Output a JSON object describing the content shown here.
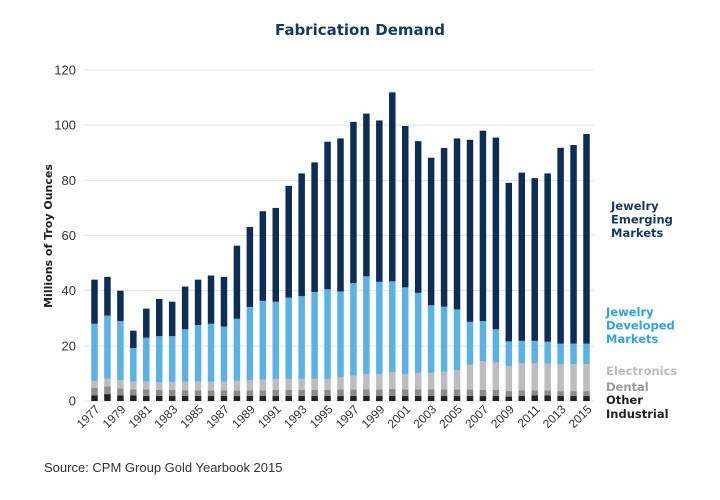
{
  "chart_data": {
    "type": "bar",
    "stacked": true,
    "title": "Fabrication Demand",
    "xlabel": "",
    "ylabel": "Millions of Troy Ounces",
    "ylim": [
      0,
      120
    ],
    "yticks": [
      0,
      20,
      40,
      60,
      80,
      100,
      120
    ],
    "grid": true,
    "legend_position": "right",
    "categories": [
      "1977",
      "1978",
      "1979",
      "1980",
      "1981",
      "1982",
      "1983",
      "1984",
      "1985",
      "1986",
      "1987",
      "1988",
      "1989",
      "1990",
      "1991",
      "1992",
      "1993",
      "1994",
      "1995",
      "1996",
      "1997",
      "1998",
      "1999",
      "2000",
      "2001",
      "2002",
      "2003",
      "2004",
      "2005",
      "2006",
      "2007",
      "2008",
      "2009",
      "2010",
      "2011",
      "2012",
      "2013",
      "2014",
      "2015"
    ],
    "xtick_labels": [
      "1977",
      "1979",
      "1981",
      "1983",
      "1985",
      "1987",
      "1989",
      "1991",
      "1993",
      "1995",
      "1997",
      "1999",
      "2001",
      "2003",
      "2005",
      "2007",
      "2009",
      "2011",
      "2013",
      "2015"
    ],
    "series": [
      {
        "name": "Other Industrial",
        "color": "#222222",
        "values": [
          2.0,
          2.5,
          2.0,
          2.0,
          1.8,
          1.8,
          1.8,
          1.8,
          1.8,
          1.8,
          1.8,
          1.8,
          1.8,
          1.8,
          1.8,
          1.8,
          1.8,
          1.8,
          1.8,
          1.8,
          1.8,
          1.8,
          1.8,
          1.8,
          1.8,
          1.8,
          1.8,
          1.8,
          1.8,
          1.8,
          1.8,
          1.8,
          1.6,
          1.8,
          2.0,
          2.0,
          1.8,
          1.8,
          1.8
        ]
      },
      {
        "name": "Dental",
        "color": "#8c8c8c",
        "values": [
          2.8,
          2.8,
          2.6,
          2.2,
          2.4,
          2.2,
          2.2,
          2.0,
          2.0,
          2.0,
          2.0,
          2.0,
          2.0,
          2.0,
          2.2,
          2.2,
          2.2,
          2.2,
          2.2,
          2.4,
          2.4,
          2.4,
          2.4,
          2.6,
          2.4,
          2.4,
          2.4,
          2.4,
          2.4,
          2.4,
          2.2,
          2.2,
          2.0,
          2.0,
          1.8,
          1.8,
          1.8,
          1.8,
          1.8
        ]
      },
      {
        "name": "Electronics",
        "color": "#bdbdbd",
        "values": [
          2.5,
          2.8,
          3.0,
          2.8,
          2.8,
          2.8,
          2.8,
          3.2,
          3.2,
          3.2,
          3.2,
          3.5,
          3.8,
          4.0,
          4.0,
          4.0,
          4.0,
          4.0,
          4.0,
          4.5,
          5.0,
          5.5,
          5.5,
          6.0,
          5.5,
          6.0,
          6.0,
          6.5,
          7.0,
          9.0,
          10.5,
          10.0,
          9.0,
          10.0,
          10.0,
          9.8,
          9.8,
          9.8,
          9.8
        ]
      },
      {
        "name": "Jewelry Developed Markets",
        "color": "#5ab1e6",
        "values": [
          20.7,
          22.9,
          21.4,
          12.2,
          16.0,
          16.7,
          16.7,
          19.0,
          20.5,
          21.0,
          20.0,
          22.5,
          26.5,
          28.5,
          28.0,
          29.5,
          30.0,
          31.5,
          32.5,
          31.0,
          33.5,
          35.5,
          33.5,
          33.0,
          31.5,
          29.0,
          24.5,
          23.5,
          22.0,
          15.5,
          14.5,
          12.0,
          9.0,
          8.0,
          8.0,
          7.9,
          7.4,
          7.4,
          7.4
        ]
      },
      {
        "name": "Jewelry Emerging Markets",
        "color": "#0d2d54",
        "values": [
          16.0,
          14.0,
          11.0,
          6.3,
          10.5,
          13.5,
          12.5,
          15.5,
          16.5,
          17.5,
          18.0,
          26.5,
          29.0,
          32.5,
          34.0,
          40.5,
          44.5,
          47.0,
          53.5,
          55.5,
          58.5,
          59.0,
          58.5,
          68.5,
          58.5,
          55.0,
          53.5,
          57.5,
          62.0,
          66.0,
          69.0,
          69.5,
          57.5,
          61.0,
          59.0,
          61.0,
          71.0,
          72.0,
          76.0
        ]
      }
    ]
  },
  "legend": [
    {
      "label_lines": [
        "Jewelry",
        "Emerging",
        "Markets"
      ],
      "color": "#14395f"
    },
    {
      "label_lines": [
        "Jewelry",
        "Developed",
        "Markets"
      ],
      "color": "#2ea3e0"
    },
    {
      "label_lines": [
        "Electronics"
      ],
      "color": "#bcbcbc"
    },
    {
      "label_lines": [
        "Dental"
      ],
      "color": "#9a9a9a"
    },
    {
      "label_lines": [
        "Other"
      ],
      "color": "#222222"
    },
    {
      "label_lines": [
        "Industrial"
      ],
      "color": "#222222"
    }
  ],
  "source": "Source: CPM Group Gold Yearbook 2015"
}
